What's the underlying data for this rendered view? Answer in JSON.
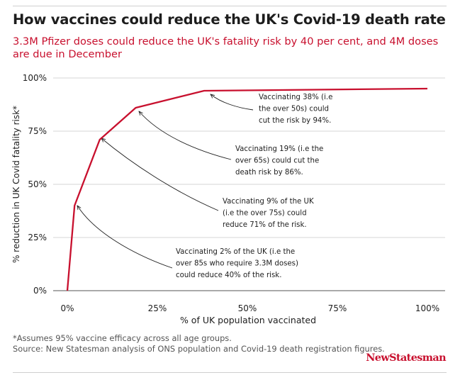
{
  "header": {
    "title": "How vaccines could reduce the UK's Covid-19 death rate",
    "subtitle": "3.3M Pfizer doses could reduce the UK's fatality risk by 40 per cent, and 4M doses are due in December"
  },
  "chart_data": {
    "type": "line",
    "title": "How vaccines could reduce the UK's Covid-19 death rate",
    "xlabel": "% of UK population vaccinated",
    "ylabel": "% reduction in UK Covid fatality risk*",
    "xlim": [
      0,
      100
    ],
    "ylim": [
      0,
      100
    ],
    "x_ticks": [
      0,
      25,
      50,
      75,
      100
    ],
    "x_tick_labels": [
      "0%",
      "25%",
      "50%",
      "75%",
      "100%"
    ],
    "y_ticks": [
      0,
      25,
      50,
      75,
      100
    ],
    "y_tick_labels": [
      "0%",
      "25%",
      "50%",
      "75%",
      "100%"
    ],
    "grid": "horizontal",
    "series": [
      {
        "name": "Reduction in fatality risk",
        "color": "#c8102e",
        "x": [
          0,
          2,
          9,
          19,
          38,
          100
        ],
        "y": [
          0,
          40,
          71,
          86,
          94,
          95
        ]
      }
    ],
    "annotations": [
      {
        "target_x": 2,
        "target_y": 40,
        "lines": [
          "Vaccinating 2% of the UK (i.e the",
          "over 85s who require 3.3M doses)",
          "could reduce 40% of the risk."
        ]
      },
      {
        "target_x": 9,
        "target_y": 71,
        "lines": [
          "Vaccinating 9% of the UK",
          "(i.e the over 75s) could",
          "reduce 71% of the risk."
        ]
      },
      {
        "target_x": 19,
        "target_y": 86,
        "lines": [
          "Vaccinating 19% (i.e the",
          "over 65s) could cut the",
          "death risk by 86%."
        ]
      },
      {
        "target_x": 38,
        "target_y": 94,
        "lines": [
          "Vaccinating 38% (i.e",
          "the over 50s) could",
          "cut the risk by 94%."
        ]
      }
    ]
  },
  "footer": {
    "footnote": "*Assumes 95% vaccine efficacy across all age groups.",
    "source": "Source: New Statesman analysis of ONS population and Covid-19 death registration figures.",
    "brand": "NewStatesman"
  }
}
